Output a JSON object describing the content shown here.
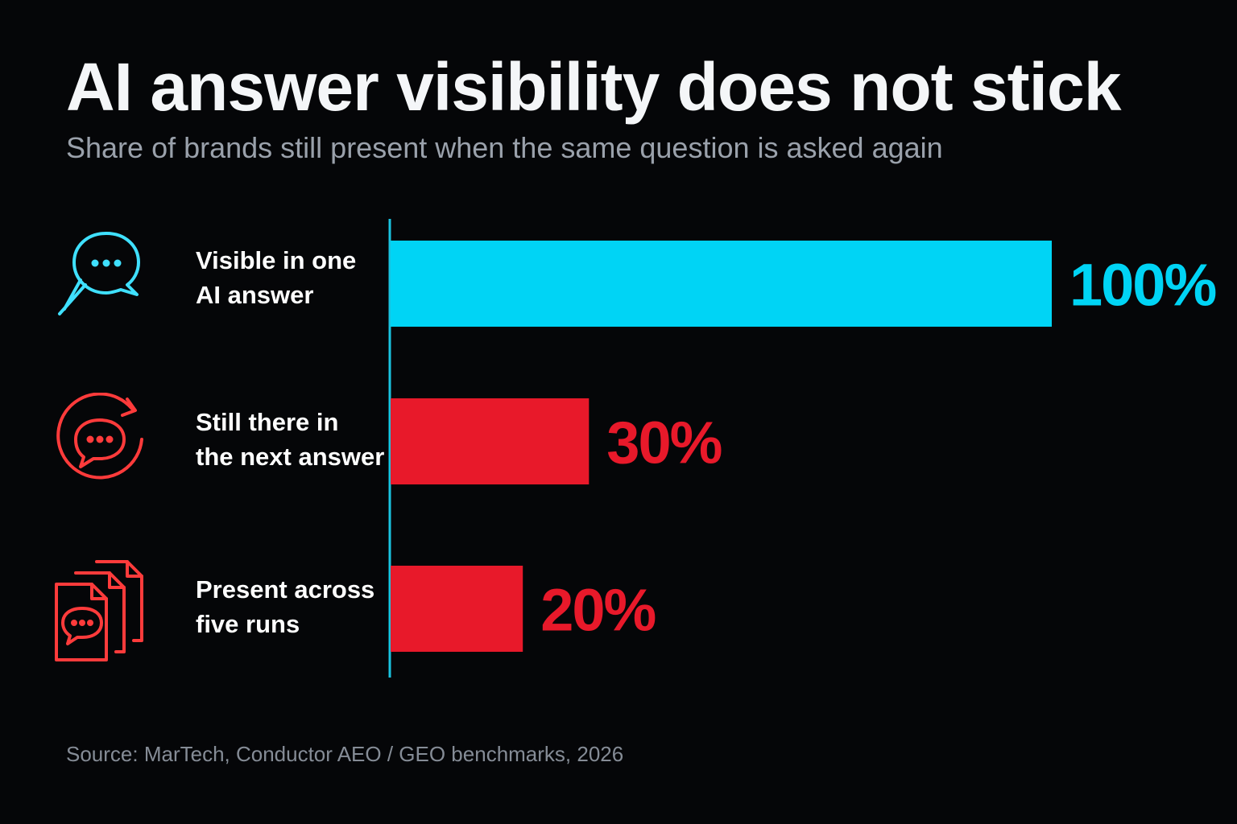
{
  "colors": {
    "background": "#050608",
    "accent_cyan": "#00d4f5",
    "accent_red": "#e8192a",
    "axis": "#19c3e0"
  },
  "chart_data": {
    "type": "bar",
    "orientation": "horizontal",
    "title": "AI answer visibility does not stick",
    "subtitle": "Share of brands still present when the same question is asked again",
    "categories": [
      [
        "Visible in one",
        "AI answer"
      ],
      [
        "Still there in",
        "the next answer"
      ],
      [
        "Present across",
        "five runs"
      ]
    ],
    "values": [
      100,
      30,
      20
    ],
    "value_labels": [
      "100%",
      "30%",
      "20%"
    ],
    "bar_colors": [
      "#00d4f5",
      "#e8192a",
      "#e8192a"
    ],
    "icons": [
      "search-chat-icon",
      "refresh-chat-icon",
      "stacked-documents-chat-icon"
    ],
    "xlim": [
      0,
      100
    ],
    "grid": false,
    "legend": "none"
  },
  "source": "Source: MarTech, Conductor AEO / GEO benchmarks, 2026"
}
